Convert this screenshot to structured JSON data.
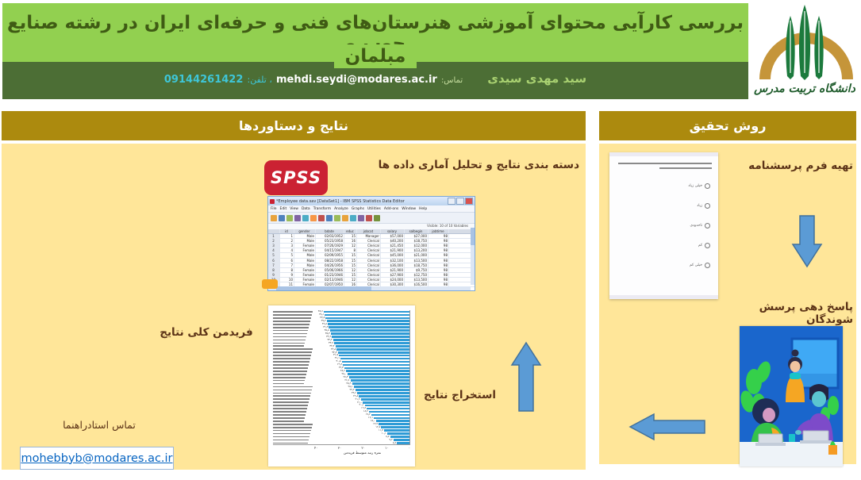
{
  "header": {
    "title_line1": "بررسی کارآیی محتوای آموزشی هنرستان‌های فنی و حرفه‌ای ایران در رشته صنایع چوب و",
    "title_line2": "مبلمان",
    "author": "سید مهدی سیدی",
    "contact_label": "تماس:",
    "email": "mehdi.seydi@modares.ac.ir",
    "phone_label": "، تلفن:",
    "phone": "09144261422"
  },
  "logo": {
    "caption": "دانشگاه تربیت مدرس"
  },
  "results_section": {
    "title": "نتایج و دستاوردها",
    "analysis_heading": "دسته بندی نتایج و تحلیل آماری داده ها",
    "spss_logo_text": "SPSS",
    "spss_window": {
      "title": "*Employee data.sav [DataSet1] - IBM SPSS Statistics Data Editor",
      "menus": [
        "File",
        "Edit",
        "View",
        "Data",
        "Transform",
        "Analyze",
        "Graphs",
        "Utilities",
        "Add-ons",
        "Window",
        "Help"
      ],
      "status": "Visible: 10 of 10 Variables",
      "columns": [
        "id",
        "gender",
        "bdate",
        "educ",
        "jobcat",
        "salary",
        "salbegin",
        "jobtime"
      ],
      "rows": [
        [
          1,
          "Male",
          "02/03/1952",
          "15",
          "Manager",
          "$57,000",
          "$27,000",
          "98"
        ],
        [
          2,
          "Male",
          "05/23/1958",
          "16",
          "Clerical",
          "$40,200",
          "$18,750",
          "98"
        ],
        [
          3,
          "Female",
          "07/26/1929",
          "12",
          "Clerical",
          "$21,450",
          "$12,000",
          "98"
        ],
        [
          4,
          "Female",
          "04/15/1947",
          "8",
          "Clerical",
          "$21,900",
          "$13,200",
          "98"
        ],
        [
          5,
          "Male",
          "02/09/1955",
          "15",
          "Clerical",
          "$45,000",
          "$21,000",
          "98"
        ],
        [
          6,
          "Male",
          "08/22/1958",
          "15",
          "Clerical",
          "$32,100",
          "$13,500",
          "98"
        ],
        [
          7,
          "Male",
          "04/26/1956",
          "15",
          "Clerical",
          "$36,000",
          "$18,750",
          "98"
        ],
        [
          8,
          "Female",
          "05/06/1966",
          "12",
          "Clerical",
          "$21,900",
          "$9,750",
          "98"
        ],
        [
          9,
          "Female",
          "01/23/1946",
          "15",
          "Clerical",
          "$27,900",
          "$12,750",
          "98"
        ],
        [
          10,
          "Female",
          "02/13/1946",
          "12",
          "Clerical",
          "$24,000",
          "$13,500",
          "98"
        ],
        [
          11,
          "Female",
          "02/07/1950",
          "16",
          "Clerical",
          "$30,300",
          "$16,500",
          "98"
        ],
        [
          12,
          "Male",
          "01/11/1966",
          "8",
          "Clerical",
          "$28,350",
          "$12,000",
          "98"
        ],
        [
          13,
          "Male",
          "07/17/1960",
          "15",
          "Clerical",
          "$27,750",
          "$14,250",
          "98"
        ],
        [
          14,
          "Female",
          "02/26/1949",
          "15",
          "Clerical",
          "$35,100",
          "$16,800",
          "98"
        ]
      ]
    },
    "friedman_label": "فریدمن کلی نتایج",
    "extract_label": "استخراج نتایج",
    "contact_label": "تماس استادراهنما",
    "supervisor_email": "mohebbyb@modares.ac.ir"
  },
  "method_section": {
    "title": "روش تحقیق",
    "step1_label": "تهیه فرم پرسشنامه",
    "questionnaire_options": [
      "خیلی زیاد",
      "زیاد",
      "تاحدودی",
      "کم",
      "خیلی کم"
    ],
    "step2_label": "پاسخ دهی پرسش شوندگان"
  },
  "chart_data": {
    "type": "bar",
    "orientation": "horizontal",
    "title": "فریدمن کلی نتایج",
    "xlabel": "نمره رتبه متوسط فریدمن",
    "xlim": [
      0,
      40
    ],
    "x_ticks": [
      0,
      10,
      20,
      30,
      40
    ],
    "axis_direction": "rtl",
    "grid": false,
    "legend": false,
    "bar_color": "#2E9BD6",
    "values": [
      38.6,
      38.1,
      37.7,
      37.2,
      36.8,
      36.3,
      35.8,
      35.4,
      34.9,
      34.4,
      33.9,
      33.4,
      32.8,
      32.3,
      31.7,
      31.1,
      30.5,
      29.9,
      29.3,
      28.6,
      28.0,
      27.3,
      26.6,
      25.9,
      25.1,
      24.4,
      23.6,
      22.8,
      21.9,
      21.0,
      20.1,
      19.2,
      18.2,
      17.2,
      16.1,
      15.0,
      13.9,
      12.7,
      11.4,
      10.1,
      8.7,
      7.2,
      5.6
    ]
  },
  "colors": {
    "header_green": "#92D050",
    "author_bar_green": "#4C6E35",
    "section_gold": "#AC8A0E",
    "panel_cream": "#FFE699",
    "arrow_blue": "#5B9BD5",
    "spss_red": "#CB2233",
    "link_blue": "#0563C1",
    "heading_brown": "#5C3317",
    "phone_teal": "#3EC6D8"
  }
}
